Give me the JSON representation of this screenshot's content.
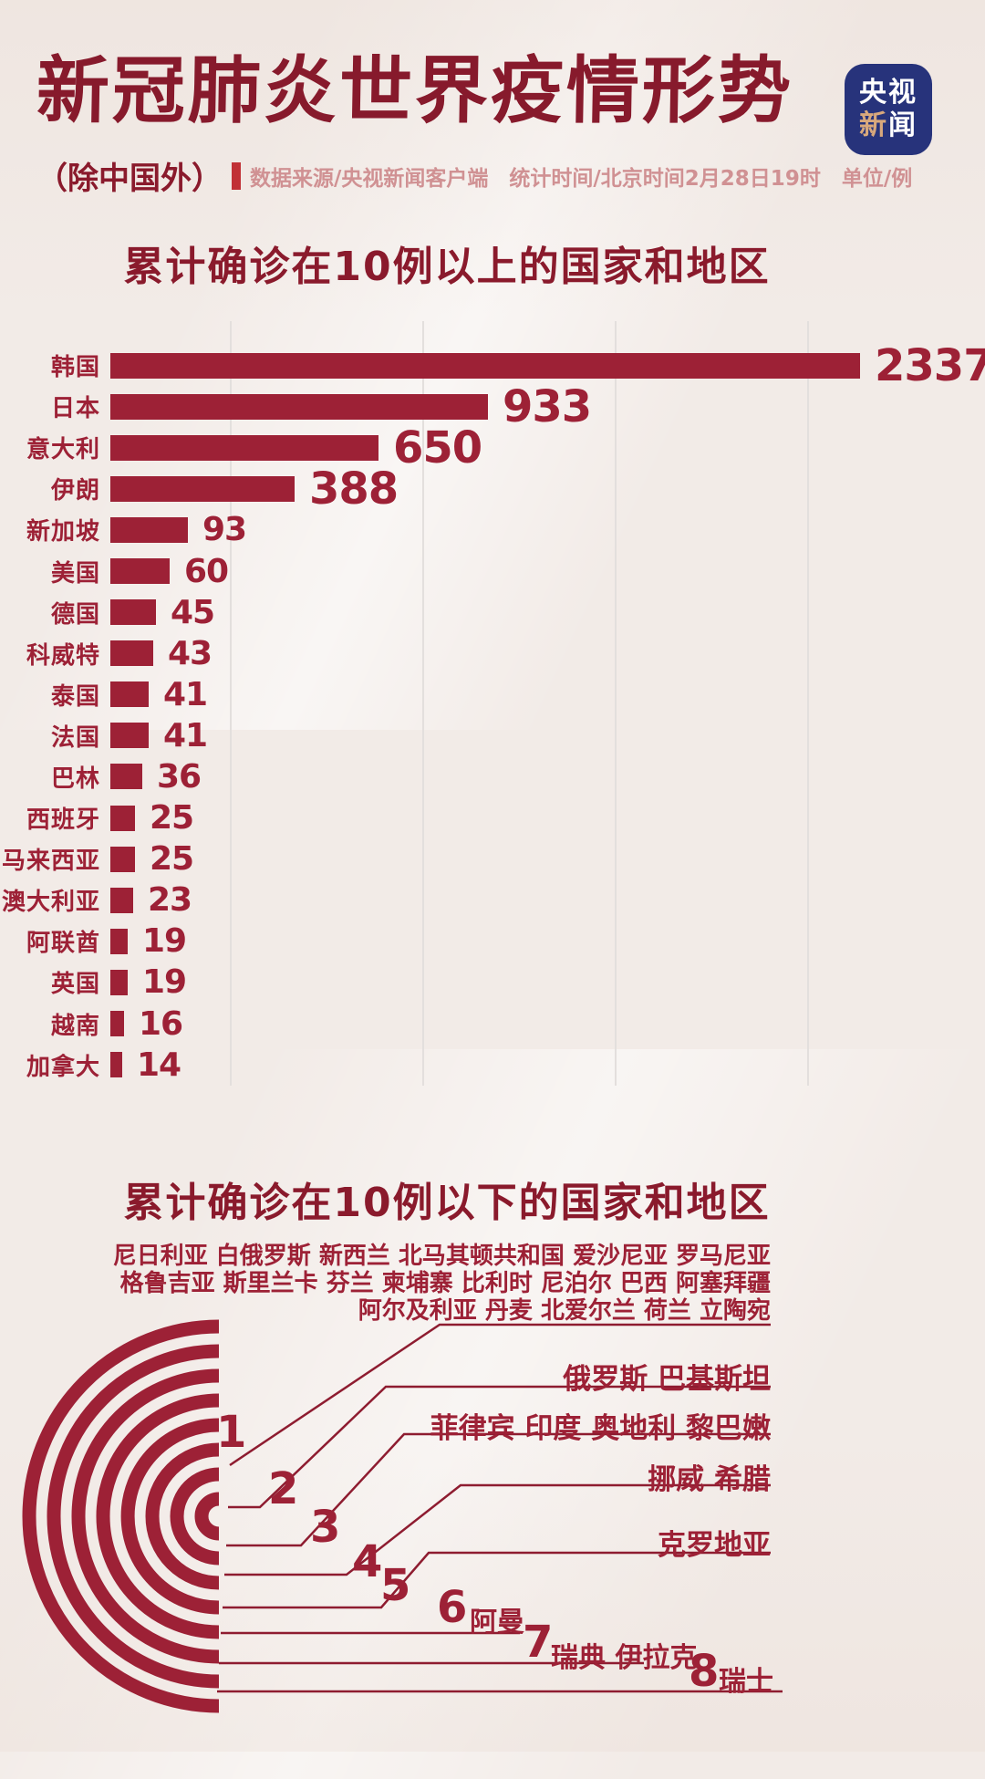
{
  "header": {
    "title": "新冠肺炎世界疫情形势",
    "badge": {
      "line1": "央视",
      "accent_char": "新",
      "white_char": "闻"
    },
    "scope_note": "（除中国外）",
    "meta": "数据来源/央视新闻客户端　统计时间/北京时间2月28日19时　单位/例"
  },
  "section_over10": {
    "title": "累计确诊在10例以上的国家和地区"
  },
  "section_under10": {
    "title": "累计确诊在10例以下的国家和地区"
  },
  "colors": {
    "deep_red": "#8a1a2c",
    "bar_red": "#9d2136",
    "meta_pink": "#d09193",
    "badge_blue": "#27337b",
    "badge_tan": "#d8a87c",
    "gridline": "#e3dfdd",
    "background": "#f2ebe7"
  },
  "chart_data": [
    {
      "type": "bar",
      "orientation": "horizontal",
      "title": "累计确诊在10例以上的国家和地区",
      "unit": "例",
      "categories": [
        "韩国",
        "日本",
        "意大利",
        "伊朗",
        "新加坡",
        "美国",
        "德国",
        "科威特",
        "泰国",
        "法国",
        "巴林",
        "西班牙",
        "马来西亚",
        "澳大利亚",
        "阿联酋",
        "英国",
        "越南",
        "加拿大"
      ],
      "values": [
        2337,
        933,
        650,
        388,
        93,
        60,
        45,
        43,
        41,
        41,
        36,
        25,
        25,
        23,
        19,
        19,
        16,
        14
      ],
      "grid": true,
      "value_labels": "end-of-bar"
    },
    {
      "type": "other",
      "subtype": "radial-arc-list",
      "title": "累计确诊在10例以下的国家和地区",
      "unit": "例",
      "groups": [
        {
          "count": 1,
          "countries": [
            "尼日利亚",
            "白俄罗斯",
            "新西兰",
            "北马其顿共和国",
            "爱沙尼亚",
            "罗马尼亚",
            "格鲁吉亚",
            "斯里兰卡",
            "芬兰",
            "柬埔寨",
            "比利时",
            "尼泊尔",
            "巴西",
            "阿塞拜疆",
            "阿尔及利亚",
            "丹麦",
            "北爱尔兰",
            "荷兰",
            "立陶宛"
          ],
          "lines": [
            "尼日利亚 白俄罗斯 新西兰 北马其顿共和国 爱沙尼亚 罗马尼亚",
            "格鲁吉亚 斯里兰卡 芬兰 柬埔寨 比利时 尼泊尔 巴西 阿塞拜疆",
            "阿尔及利亚 丹麦 北爱尔兰 荷兰 立陶宛"
          ]
        },
        {
          "count": 2,
          "countries": [
            "俄罗斯",
            "巴基斯坦"
          ],
          "label": "俄罗斯 巴基斯坦"
        },
        {
          "count": 3,
          "countries": [
            "菲律宾",
            "印度",
            "奥地利",
            "黎巴嫩"
          ],
          "label": "菲律宾 印度 奥地利 黎巴嫩"
        },
        {
          "count": 4,
          "countries": [
            "挪威",
            "希腊"
          ],
          "label": "挪威 希腊"
        },
        {
          "count": 5,
          "countries": [
            "克罗地亚"
          ],
          "label": "克罗地亚"
        },
        {
          "count": 6,
          "countries": [
            "阿曼"
          ],
          "label": "阿曼"
        },
        {
          "count": 7,
          "countries": [
            "瑞典",
            "伊拉克"
          ],
          "label": "瑞典 伊拉克"
        },
        {
          "count": 8,
          "countries": [
            "瑞士"
          ],
          "label": "瑞士"
        }
      ]
    }
  ]
}
